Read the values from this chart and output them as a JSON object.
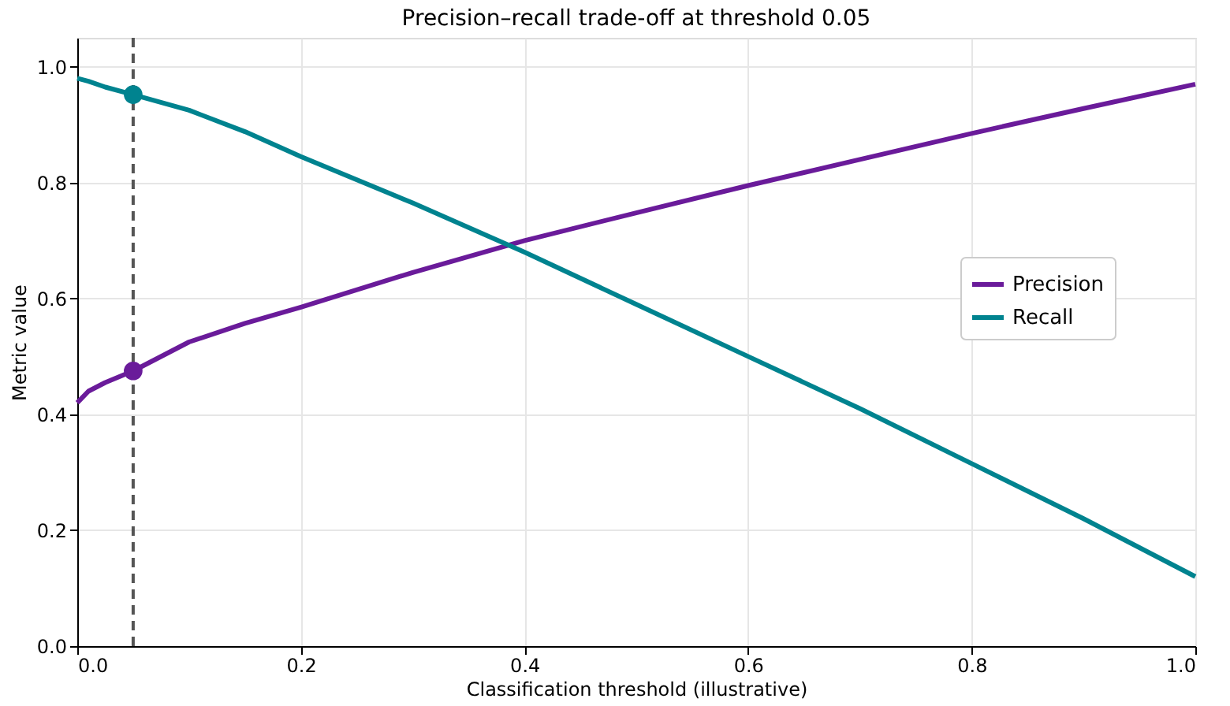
{
  "chart_data": {
    "type": "line",
    "title": "Precision–recall trade-off at threshold 0.05",
    "xlabel": "Classification threshold (illustrative)",
    "ylabel": "Metric value",
    "x": [
      0,
      0.01,
      0.025,
      0.05,
      0.1,
      0.15,
      0.2,
      0.3,
      0.4,
      0.5,
      0.6,
      0.7,
      0.8,
      0.9,
      1.0
    ],
    "series": [
      {
        "name": "Precision",
        "color": "#6a1b9a",
        "values": [
          0.42,
          0.44,
          0.455,
          0.475,
          0.525,
          0.557,
          0.585,
          0.645,
          0.7,
          0.748,
          0.795,
          0.84,
          0.885,
          0.928,
          0.97
        ]
      },
      {
        "name": "Recall",
        "color": "#00838f",
        "values": [
          0.98,
          0.975,
          0.965,
          0.952,
          0.925,
          0.888,
          0.845,
          0.765,
          0.68,
          0.59,
          0.5,
          0.41,
          0.315,
          0.22,
          0.12
        ]
      },
      {
        "type": "scatter",
        "marker": "circle",
        "color": "#6a1b9a",
        "x": [
          0.05
        ],
        "values": [
          0.475
        ]
      },
      {
        "type": "scatter",
        "marker": "circle",
        "color": "#00838f",
        "x": [
          0.05
        ],
        "values": [
          0.952
        ]
      }
    ],
    "xlim": [
      0,
      1
    ],
    "ylim": [
      0,
      1.05
    ],
    "xticks": [
      {
        "value": 0,
        "label": "0.0"
      },
      0.2,
      0.4,
      0.6,
      0.8,
      {
        "value": 1,
        "label": "1.0"
      }
    ],
    "yticks": [
      {
        "value": 0,
        "label": "0.0"
      },
      0.2,
      0.4,
      0.6,
      0.8,
      {
        "value": 1,
        "label": "1.0"
      }
    ],
    "ref_lines": [
      {
        "axis": "x",
        "value": 0.05,
        "color": "#555555",
        "line_style": "dashed"
      }
    ],
    "grid": true,
    "legend": "center right",
    "line_style": "solid"
  }
}
